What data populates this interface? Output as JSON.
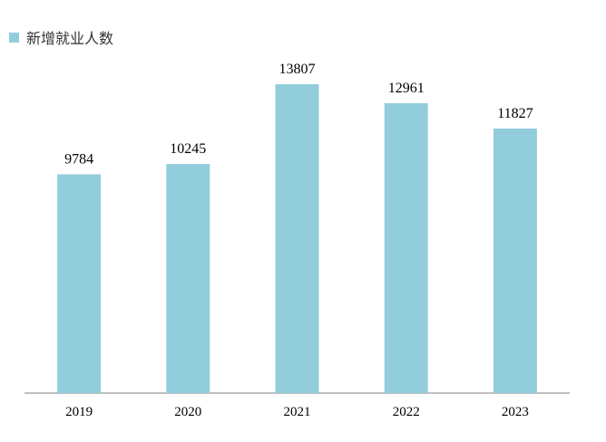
{
  "chart_data": {
    "type": "bar",
    "categories": [
      "2019",
      "2020",
      "2021",
      "2022",
      "2023"
    ],
    "series": [
      {
        "name": "新增就业人数",
        "values": [
          9784,
          10245,
          13807,
          12961,
          11827
        ]
      }
    ],
    "title": "",
    "xlabel": "",
    "ylabel": "",
    "ylim": [
      0,
      15000
    ],
    "grid": false,
    "legend": "top-left",
    "data_labels": true,
    "colors": {
      "bar": "#92CDDC",
      "axis": "#7F7F7F",
      "text": "#000000"
    }
  }
}
